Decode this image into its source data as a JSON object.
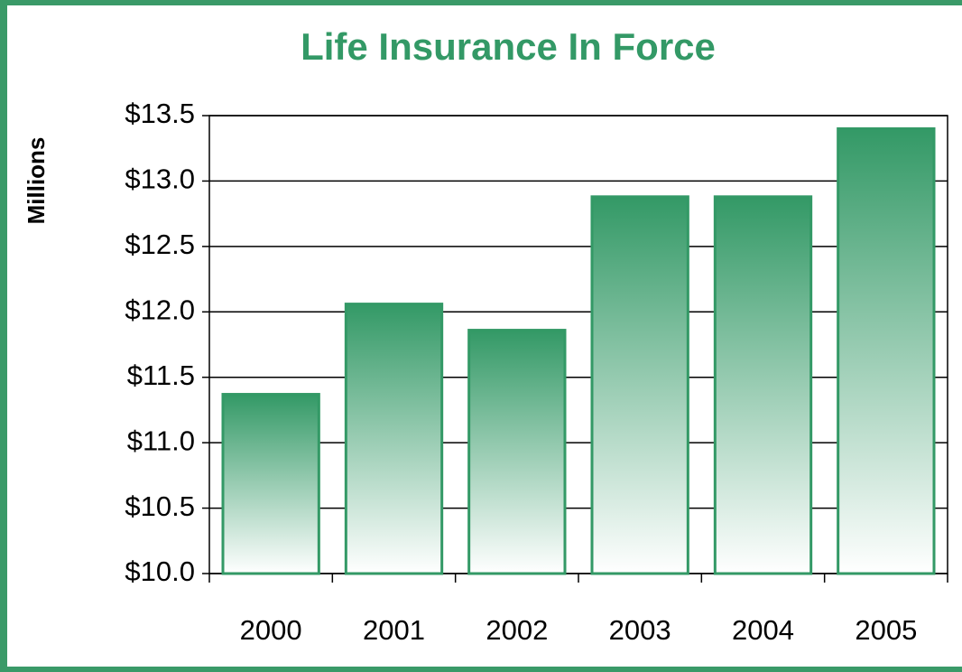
{
  "chart_data": {
    "type": "bar",
    "title": "Life Insurance In Force",
    "y_label": "Millions",
    "categories": [
      "2000",
      "2001",
      "2002",
      "2003",
      "2004",
      "2005"
    ],
    "values": [
      11.37,
      12.06,
      11.86,
      12.88,
      12.88,
      13.4
    ],
    "color": "#339966",
    "ylim": [
      10.0,
      13.5
    ],
    "yticks": [
      {
        "value": 10.0,
        "label": "$10.0"
      },
      {
        "value": 10.5,
        "label": "$10.5"
      },
      {
        "value": 11.0,
        "label": "$11.0"
      },
      {
        "value": 11.5,
        "label": "$11.5"
      },
      {
        "value": 12.0,
        "label": "$12.0"
      },
      {
        "value": 12.5,
        "label": "$12.5"
      },
      {
        "value": 13.0,
        "label": "$13.0"
      },
      {
        "value": 13.5,
        "label": "$13.5"
      }
    ],
    "grid": true
  }
}
